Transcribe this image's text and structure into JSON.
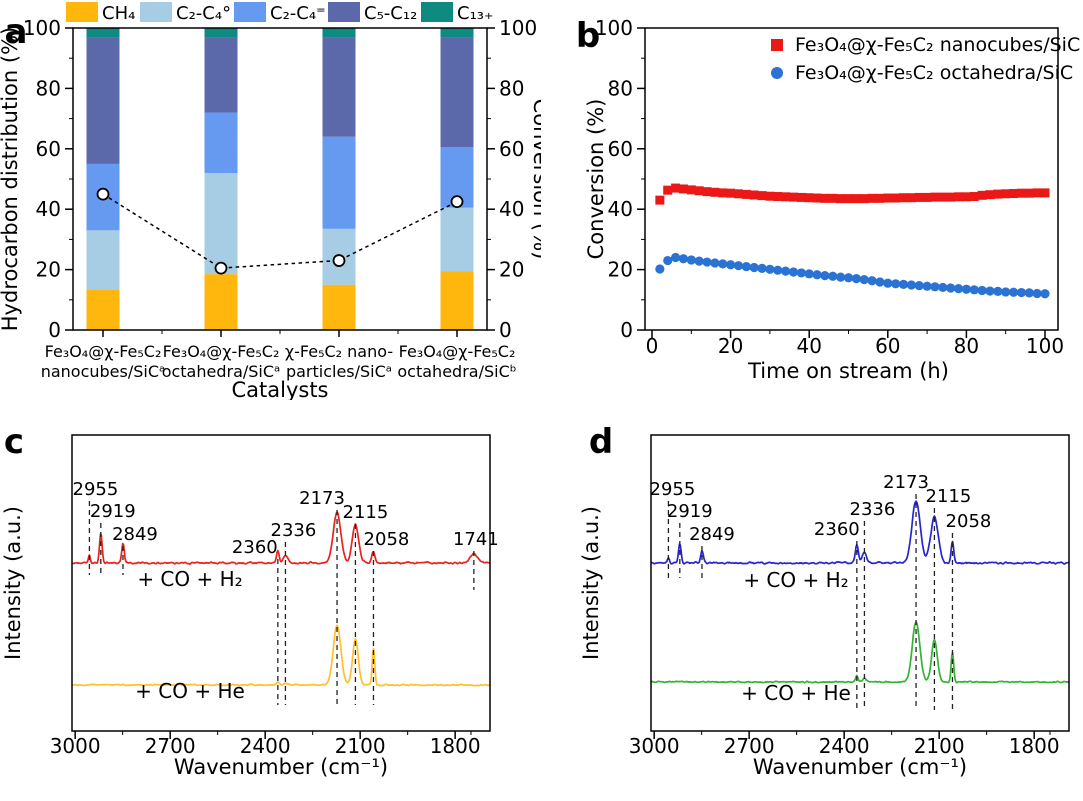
{
  "panel_a": {
    "letter": "a",
    "legend": [
      {
        "label": "CH₄",
        "color": "#FFB60D"
      },
      {
        "label": "C₂-C₄°",
        "color": "#A6CDE3"
      },
      {
        "label": "C₂-C₄⁼",
        "color": "#6699F0"
      },
      {
        "label": "C₅-C₁₂",
        "color": "#5B68A9"
      },
      {
        "label": "C₁₃₊",
        "color": "#0F8A80"
      }
    ],
    "ylabel_left": "Hydrocarbon distribution (%)",
    "ylabel_right": "Conversion (%)",
    "xlabel": "Catalysts",
    "y_ticks": [
      0,
      20,
      40,
      60,
      80,
      100
    ],
    "chart_data": {
      "type": "bar",
      "stacked": true,
      "categories": [
        {
          "line1": "Fe₃O₄@χ-Fe₅C₂",
          "line2": "nanocubes/SiCᵃ"
        },
        {
          "line1": "Fe₃O₄@χ-Fe₅C₂",
          "line2": "octahedra/SiCᵃ"
        },
        {
          "line1": "χ-Fe₅C₂ nano-",
          "line2": "particles/SiCᵃ"
        },
        {
          "line1": "Fe₃O₄@χ-Fe₅C₂",
          "line2": "octahedra/SiCᵇ"
        }
      ],
      "series_order": [
        "CH₄",
        "C₂-C₄°",
        "C₂-C₄⁼",
        "C₅-C₁₂",
        "C₁₃₊"
      ],
      "stacks": [
        [
          13.5,
          19.5,
          22,
          42,
          3
        ],
        [
          18.5,
          33.5,
          20,
          25,
          3
        ],
        [
          15,
          18.5,
          30.5,
          33,
          3
        ],
        [
          19.5,
          21,
          20,
          36.5,
          3
        ]
      ],
      "conversion_line": [
        45,
        20.5,
        23,
        42.5
      ],
      "conversion_marker": "open-circle",
      "ylim": [
        0,
        100
      ]
    }
  },
  "panel_b": {
    "letter": "b",
    "xlabel": "Time on stream (h)",
    "ylabel": "Conversion (%)",
    "x_ticks": [
      0,
      20,
      40,
      60,
      80,
      100
    ],
    "y_ticks": [
      0,
      20,
      40,
      60,
      80,
      100
    ],
    "chart_data": {
      "type": "scatter",
      "xlim": [
        0,
        100
      ],
      "ylim": [
        0,
        100
      ],
      "series": [
        {
          "name": "Fe₃O₄@χ-Fe₅C₂ nanocubes/SiC",
          "marker": "square",
          "color": "#EA1917",
          "t": [
            2,
            4,
            6,
            8,
            10,
            12,
            14,
            16,
            18,
            20,
            22,
            24,
            26,
            28,
            30,
            32,
            34,
            36,
            38,
            40,
            42,
            44,
            46,
            48,
            50,
            52,
            54,
            56,
            58,
            60,
            62,
            64,
            66,
            68,
            70,
            72,
            74,
            76,
            78,
            80,
            82,
            84,
            86,
            88,
            90,
            92,
            94,
            96,
            98,
            100
          ],
          "conversion": [
            43.0,
            46.3,
            47.0,
            46.7,
            46.4,
            46.1,
            45.8,
            45.6,
            45.4,
            45.3,
            45.1,
            44.9,
            44.7,
            44.5,
            44.3,
            44.2,
            44.1,
            44.0,
            43.9,
            43.8,
            43.7,
            43.6,
            43.6,
            43.5,
            43.5,
            43.5,
            43.5,
            43.6,
            43.6,
            43.7,
            43.7,
            43.8,
            43.8,
            43.9,
            43.9,
            44.0,
            44.0,
            44.0,
            44.1,
            44.1,
            44.2,
            44.6,
            44.8,
            45.0,
            45.1,
            45.2,
            45.3,
            45.3,
            45.4,
            45.4
          ]
        },
        {
          "name": "Fe₃O₄@χ-Fe₅C₂ octahedra/SiC",
          "marker": "circle",
          "color": "#2A72D4",
          "t": [
            2,
            4,
            6,
            8,
            10,
            12,
            14,
            16,
            18,
            20,
            22,
            24,
            26,
            28,
            30,
            32,
            34,
            36,
            38,
            40,
            42,
            44,
            46,
            48,
            50,
            52,
            54,
            56,
            58,
            60,
            62,
            64,
            66,
            68,
            70,
            72,
            74,
            76,
            78,
            80,
            82,
            84,
            86,
            88,
            90,
            92,
            94,
            96,
            98,
            100
          ],
          "conversion": [
            20.2,
            23.0,
            24.0,
            23.6,
            23.2,
            22.8,
            22.5,
            22.2,
            21.9,
            21.6,
            21.3,
            21.0,
            20.7,
            20.4,
            20.1,
            19.8,
            19.5,
            19.2,
            18.9,
            18.6,
            18.3,
            18.0,
            17.8,
            17.5,
            17.3,
            17.0,
            16.7,
            16.3,
            15.9,
            15.5,
            15.3,
            15.1,
            14.9,
            14.7,
            14.5,
            14.3,
            14.1,
            13.9,
            13.7,
            13.5,
            13.3,
            13.1,
            12.9,
            12.8,
            12.6,
            12.5,
            12.4,
            12.3,
            12.1,
            12.0
          ]
        }
      ]
    }
  },
  "panel_c": {
    "letter": "c",
    "xlabel": "Wavenumber (cm⁻¹)",
    "ylabel": "Intensity (a.u.)",
    "x_ticks": [
      3000,
      2700,
      2400,
      2100,
      1800
    ],
    "chart_data": {
      "type": "line",
      "x_range_cm1": [
        3010,
        1690
      ],
      "curves": [
        {
          "name": "+ CO + H₂",
          "color": "#E8221C",
          "baseline": 163,
          "noise": 1.3,
          "seed": 11,
          "label_x": 190,
          "label_y": 186,
          "peaks": [
            {
              "wn": 2955,
              "h": 8,
              "w": 3
            },
            {
              "wn": 2919,
              "h": 30,
              "w": 4
            },
            {
              "wn": 2849,
              "h": 20,
              "w": 4
            },
            {
              "wn": 2360,
              "h": 12,
              "w": 4
            },
            {
              "wn": 2336,
              "h": 8,
              "w": 7
            },
            {
              "wn": 2173,
              "h": 50,
              "w": 12
            },
            {
              "wn": 2115,
              "h": 38,
              "w": 10
            },
            {
              "wn": 2058,
              "h": 11,
              "w": 5
            },
            {
              "wn": 1741,
              "h": 9,
              "w": 12
            }
          ]
        },
        {
          "name": "+ CO + He",
          "color": "#FFBF2E",
          "baseline": 285,
          "noise": 1.0,
          "seed": 12,
          "label_x": 190,
          "label_y": 298,
          "peaks": [
            {
              "wn": 2360,
              "h": 3,
              "w": 5
            },
            {
              "wn": 2336,
              "h": 2,
              "w": 7
            },
            {
              "wn": 2173,
              "h": 60,
              "w": 12
            },
            {
              "wn": 2115,
              "h": 46,
              "w": 9
            },
            {
              "wn": 2058,
              "h": 37,
              "w": 4
            }
          ]
        }
      ],
      "annotations": [
        {
          "text": "2955",
          "wn": 2955,
          "y": 95,
          "dx": 6,
          "dash_to": 175
        },
        {
          "text": "2919",
          "wn": 2919,
          "y": 117,
          "dx": 12,
          "dash_to": 175
        },
        {
          "text": "2849",
          "wn": 2849,
          "y": 140,
          "dx": 12,
          "dash_to": 175
        },
        {
          "text": "2360",
          "wn": 2360,
          "y": 153,
          "dx": -23,
          "dash_to": 305
        },
        {
          "text": "2336",
          "wn": 2336,
          "y": 136,
          "dx": 8,
          "dash_to": 305
        },
        {
          "text": "2173",
          "wn": 2173,
          "y": 104,
          "dx": -15,
          "dash_to": 305
        },
        {
          "text": "2115",
          "wn": 2115,
          "y": 118,
          "dx": 10,
          "dash_to": 305
        },
        {
          "text": "2058",
          "wn": 2058,
          "y": 145,
          "dx": 13,
          "dash_to": 305
        },
        {
          "text": "1741",
          "wn": 1741,
          "y": 145,
          "dx": 2,
          "dash_to": 190
        }
      ]
    }
  },
  "panel_d": {
    "letter": "d",
    "xlabel": "Wavenumber (cm⁻¹)",
    "ylabel": "Intensity (a.u.)",
    "x_ticks": [
      3000,
      2700,
      2400,
      2100,
      1800
    ],
    "chart_data": {
      "type": "line",
      "x_range_cm1": [
        3010,
        1690
      ],
      "curves": [
        {
          "name": "+ CO + H₂",
          "color": "#2525D1",
          "baseline": 163,
          "noise": 1.4,
          "seed": 21,
          "label_x": 255,
          "label_y": 187,
          "peaks": [
            {
              "wn": 2955,
              "h": 5,
              "w": 3
            },
            {
              "wn": 2919,
              "h": 20,
              "w": 4
            },
            {
              "wn": 2849,
              "h": 13,
              "w": 4
            },
            {
              "wn": 2360,
              "h": 18,
              "w": 5
            },
            {
              "wn": 2336,
              "h": 11,
              "w": 7
            },
            {
              "wn": 2173,
              "h": 62,
              "w": 13
            },
            {
              "wn": 2115,
              "h": 46,
              "w": 12
            },
            {
              "wn": 2058,
              "h": 22,
              "w": 4
            }
          ]
        },
        {
          "name": "+ CO + He",
          "color": "#33B433",
          "baseline": 282,
          "noise": 0.9,
          "seed": 22,
          "label_x": 255,
          "label_y": 300,
          "peaks": [
            {
              "wn": 2360,
              "h": 6,
              "w": 4
            },
            {
              "wn": 2336,
              "h": 4,
              "w": 6
            },
            {
              "wn": 2173,
              "h": 60,
              "w": 12
            },
            {
              "wn": 2115,
              "h": 42,
              "w": 9
            },
            {
              "wn": 2058,
              "h": 30,
              "w": 4
            }
          ]
        }
      ],
      "annotations": [
        {
          "text": "2955",
          "wn": 2955,
          "y": 95,
          "dx": 4,
          "dash_to": 178
        },
        {
          "text": "2919",
          "wn": 2919,
          "y": 117,
          "dx": 10,
          "dash_to": 178
        },
        {
          "text": "2849",
          "wn": 2849,
          "y": 140,
          "dx": 10,
          "dash_to": 178
        },
        {
          "text": "2360",
          "wn": 2360,
          "y": 135,
          "dx": -20,
          "dash_to": 310
        },
        {
          "text": "2336",
          "wn": 2336,
          "y": 115,
          "dx": 8,
          "dash_to": 310
        },
        {
          "text": "2173",
          "wn": 2173,
          "y": 88,
          "dx": -10,
          "dash_to": 310
        },
        {
          "text": "2115",
          "wn": 2115,
          "y": 102,
          "dx": 14,
          "dash_to": 310
        },
        {
          "text": "2058",
          "wn": 2058,
          "y": 127,
          "dx": 16,
          "dash_to": 310
        }
      ]
    }
  }
}
